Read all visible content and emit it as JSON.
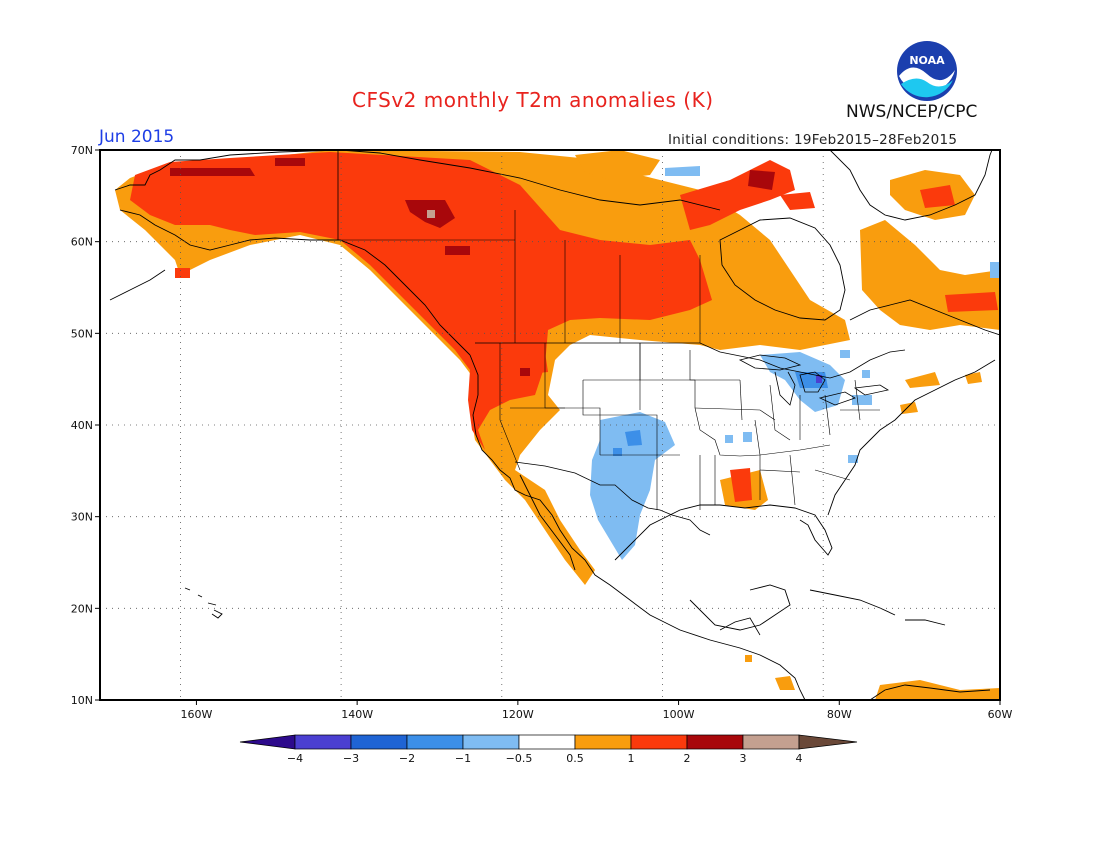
{
  "header": {
    "title": "CFSv2 monthly T2m anomalies (K)",
    "month": "Jun 2015",
    "initial_conditions": "Initial conditions: 19Feb2015–28Feb2015",
    "agency": "NWS/NCEP/CPC",
    "logo_text": "NOAA"
  },
  "map": {
    "lon_range": [
      -172,
      -60
    ],
    "lat_range": [
      10,
      70
    ],
    "lat_ticks": [
      "70N",
      "60N",
      "50N",
      "40N",
      "30N",
      "20N",
      "10N"
    ],
    "lon_ticks": [
      "160W",
      "140W",
      "120W",
      "100W",
      "80W",
      "60W"
    ]
  },
  "colorbar": {
    "labels": [
      "−4",
      "−3",
      "−2",
      "−1",
      "−0.5",
      "0.5",
      "1",
      "2",
      "3",
      "4"
    ],
    "colors": [
      "#2d0a8c",
      "#4b3fd1",
      "#1f64d4",
      "#3c8fe8",
      "#7fbcf2",
      "#ffffff",
      "#f99d0e",
      "#fb3a0c",
      "#a8070b",
      "#c4a090",
      "#6a4838"
    ]
  },
  "colors": {
    "title": "#e8231e",
    "month": "#1e3ee6",
    "warm1": "#f99d0e",
    "warm2": "#fb3a0c",
    "warm3": "#a8070b",
    "cool1": "#7fbcf2",
    "cool2": "#3c8fe8"
  }
}
